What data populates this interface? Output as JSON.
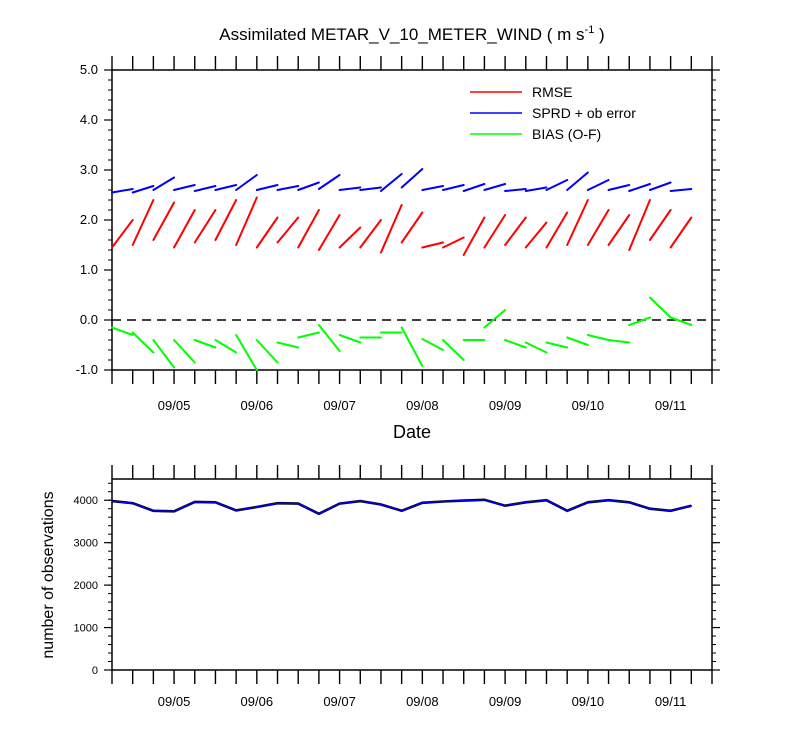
{
  "chart_data": [
    {
      "type": "line",
      "title": "Assimilated METAR_V_10_METER_WIND",
      "title_units": {
        "base": "m s",
        "exponent": "-1"
      },
      "xlabel": "Date",
      "ylabel": "",
      "ylim": [
        -1.0,
        5.0
      ],
      "xlim": [
        4.25,
        11.5
      ],
      "yticks": [
        -1.0,
        0.0,
        1.0,
        2.0,
        3.0,
        4.0,
        5.0
      ],
      "ytick_labels": [
        "-1.0",
        "0.0",
        "1.0",
        "2.0",
        "3.0",
        "4.0",
        "5.0"
      ],
      "xtick_values": [
        5,
        6,
        7,
        8,
        9,
        10,
        11
      ],
      "xtick_labels": [
        "09/05",
        "09/06",
        "09/07",
        "09/08",
        "09/09",
        "09/10",
        "09/11"
      ],
      "legend_position": "top-right",
      "zero_line": {
        "style": "dashed",
        "value": 0.0
      },
      "colors": {
        "rmse": "#ff0000",
        "spread": "#0000ff",
        "bias": "#00ff00"
      },
      "series": [
        {
          "name": "RMSE",
          "color": "#ff0000",
          "segments": [
            [
              [
                4.25,
                1.45
              ],
              [
                4.5,
                2.0
              ]
            ],
            [
              [
                4.5,
                1.5
              ],
              [
                4.75,
                2.4
              ]
            ],
            [
              [
                4.75,
                1.6
              ],
              [
                5.0,
                2.35
              ]
            ],
            [
              [
                5.0,
                1.45
              ],
              [
                5.25,
                2.2
              ]
            ],
            [
              [
                5.25,
                1.55
              ],
              [
                5.5,
                2.2
              ]
            ],
            [
              [
                5.5,
                1.6
              ],
              [
                5.75,
                2.4
              ]
            ],
            [
              [
                5.75,
                1.5
              ],
              [
                6.0,
                2.45
              ]
            ],
            [
              [
                6.0,
                1.45
              ],
              [
                6.25,
                2.05
              ]
            ],
            [
              [
                6.25,
                1.55
              ],
              [
                6.5,
                2.05
              ]
            ],
            [
              [
                6.5,
                1.45
              ],
              [
                6.75,
                2.2
              ]
            ],
            [
              [
                6.75,
                1.4
              ],
              [
                7.0,
                2.1
              ]
            ],
            [
              [
                7.0,
                1.45
              ],
              [
                7.25,
                1.85
              ]
            ],
            [
              [
                7.25,
                1.45
              ],
              [
                7.5,
                2.0
              ]
            ],
            [
              [
                7.5,
                1.35
              ],
              [
                7.75,
                2.3
              ]
            ],
            [
              [
                7.75,
                1.55
              ],
              [
                8.0,
                2.15
              ]
            ],
            [
              [
                8.0,
                1.45
              ],
              [
                8.25,
                1.55
              ]
            ],
            [
              [
                8.25,
                1.45
              ],
              [
                8.5,
                1.65
              ]
            ],
            [
              [
                8.5,
                1.3
              ],
              [
                8.75,
                2.05
              ]
            ],
            [
              [
                8.75,
                1.45
              ],
              [
                9.0,
                2.1
              ]
            ],
            [
              [
                9.0,
                1.5
              ],
              [
                9.25,
                2.05
              ]
            ],
            [
              [
                9.25,
                1.45
              ],
              [
                9.5,
                1.95
              ]
            ],
            [
              [
                9.5,
                1.45
              ],
              [
                9.75,
                2.15
              ]
            ],
            [
              [
                9.75,
                1.5
              ],
              [
                10.0,
                2.4
              ]
            ],
            [
              [
                10.0,
                1.5
              ],
              [
                10.25,
                2.2
              ]
            ],
            [
              [
                10.25,
                1.5
              ],
              [
                10.5,
                2.1
              ]
            ],
            [
              [
                10.5,
                1.4
              ],
              [
                10.75,
                2.4
              ]
            ],
            [
              [
                10.75,
                1.6
              ],
              [
                11.0,
                2.2
              ]
            ],
            [
              [
                11.0,
                1.45
              ],
              [
                11.25,
                2.05
              ]
            ]
          ]
        },
        {
          "name": "SPRD + ob error",
          "color": "#0000ff",
          "segments": [
            [
              [
                4.25,
                2.55
              ],
              [
                4.5,
                2.62
              ]
            ],
            [
              [
                4.5,
                2.55
              ],
              [
                4.75,
                2.68
              ]
            ],
            [
              [
                4.75,
                2.6
              ],
              [
                5.0,
                2.85
              ]
            ],
            [
              [
                5.0,
                2.6
              ],
              [
                5.25,
                2.7
              ]
            ],
            [
              [
                5.25,
                2.58
              ],
              [
                5.5,
                2.68
              ]
            ],
            [
              [
                5.5,
                2.6
              ],
              [
                5.75,
                2.7
              ]
            ],
            [
              [
                5.75,
                2.6
              ],
              [
                6.0,
                2.9
              ]
            ],
            [
              [
                6.0,
                2.6
              ],
              [
                6.25,
                2.7
              ]
            ],
            [
              [
                6.25,
                2.6
              ],
              [
                6.5,
                2.68
              ]
            ],
            [
              [
                6.5,
                2.6
              ],
              [
                6.75,
                2.75
              ]
            ],
            [
              [
                6.75,
                2.62
              ],
              [
                7.0,
                2.9
              ]
            ],
            [
              [
                7.0,
                2.6
              ],
              [
                7.25,
                2.65
              ]
            ],
            [
              [
                7.25,
                2.6
              ],
              [
                7.5,
                2.65
              ]
            ],
            [
              [
                7.5,
                2.58
              ],
              [
                7.75,
                2.92
              ]
            ],
            [
              [
                7.75,
                2.65
              ],
              [
                8.0,
                3.02
              ]
            ],
            [
              [
                8.0,
                2.6
              ],
              [
                8.25,
                2.68
              ]
            ],
            [
              [
                8.25,
                2.6
              ],
              [
                8.5,
                2.7
              ]
            ],
            [
              [
                8.5,
                2.58
              ],
              [
                8.75,
                2.72
              ]
            ],
            [
              [
                8.75,
                2.6
              ],
              [
                9.0,
                2.72
              ]
            ],
            [
              [
                9.0,
                2.58
              ],
              [
                9.25,
                2.62
              ]
            ],
            [
              [
                9.25,
                2.58
              ],
              [
                9.5,
                2.65
              ]
            ],
            [
              [
                9.5,
                2.6
              ],
              [
                9.75,
                2.8
              ]
            ],
            [
              [
                9.75,
                2.6
              ],
              [
                10.0,
                2.95
              ]
            ],
            [
              [
                10.0,
                2.6
              ],
              [
                10.25,
                2.8
              ]
            ],
            [
              [
                10.25,
                2.6
              ],
              [
                10.5,
                2.7
              ]
            ],
            [
              [
                10.5,
                2.58
              ],
              [
                10.75,
                2.72
              ]
            ],
            [
              [
                10.75,
                2.6
              ],
              [
                11.0,
                2.75
              ]
            ],
            [
              [
                11.0,
                2.58
              ],
              [
                11.25,
                2.62
              ]
            ]
          ]
        },
        {
          "name": "BIAS (O-F)",
          "color": "#00ff00",
          "segments": [
            [
              [
                4.25,
                -0.15
              ],
              [
                4.5,
                -0.3
              ]
            ],
            [
              [
                4.5,
                -0.25
              ],
              [
                4.75,
                -0.65
              ]
            ],
            [
              [
                4.75,
                -0.4
              ],
              [
                5.0,
                -0.95
              ]
            ],
            [
              [
                5.0,
                -0.4
              ],
              [
                5.25,
                -0.85
              ]
            ],
            [
              [
                5.25,
                -0.4
              ],
              [
                5.5,
                -0.55
              ]
            ],
            [
              [
                5.5,
                -0.4
              ],
              [
                5.75,
                -0.65
              ]
            ],
            [
              [
                5.75,
                -0.3
              ],
              [
                6.0,
                -1.0
              ]
            ],
            [
              [
                6.0,
                -0.4
              ],
              [
                6.25,
                -0.85
              ]
            ],
            [
              [
                6.25,
                -0.45
              ],
              [
                6.5,
                -0.55
              ]
            ],
            [
              [
                6.5,
                -0.35
              ],
              [
                6.75,
                -0.25
              ]
            ],
            [
              [
                6.75,
                -0.1
              ],
              [
                7.0,
                -0.62
              ]
            ],
            [
              [
                7.0,
                -0.3
              ],
              [
                7.25,
                -0.45
              ]
            ],
            [
              [
                7.25,
                -0.35
              ],
              [
                7.5,
                -0.35
              ]
            ],
            [
              [
                7.5,
                -0.25
              ],
              [
                7.75,
                -0.25
              ]
            ],
            [
              [
                7.75,
                -0.15
              ],
              [
                8.0,
                -0.92
              ]
            ],
            [
              [
                8.0,
                -0.38
              ],
              [
                8.25,
                -0.6
              ]
            ],
            [
              [
                8.25,
                -0.4
              ],
              [
                8.5,
                -0.8
              ]
            ],
            [
              [
                8.5,
                -0.4
              ],
              [
                8.75,
                -0.4
              ]
            ],
            [
              [
                8.75,
                -0.15
              ],
              [
                9.0,
                0.2
              ]
            ],
            [
              [
                9.0,
                -0.4
              ],
              [
                9.25,
                -0.55
              ]
            ],
            [
              [
                9.25,
                -0.45
              ],
              [
                9.5,
                -0.65
              ]
            ],
            [
              [
                9.5,
                -0.45
              ],
              [
                9.75,
                -0.55
              ]
            ],
            [
              [
                9.75,
                -0.35
              ],
              [
                10.0,
                -0.5
              ]
            ],
            [
              [
                10.0,
                -0.3
              ],
              [
                10.25,
                -0.4
              ]
            ],
            [
              [
                10.25,
                -0.4
              ],
              [
                10.5,
                -0.45
              ]
            ],
            [
              [
                10.5,
                -0.1
              ],
              [
                10.75,
                0.05
              ]
            ],
            [
              [
                10.75,
                0.45
              ],
              [
                11.0,
                0.05
              ]
            ],
            [
              [
                11.0,
                0.05
              ],
              [
                11.25,
                -0.1
              ]
            ]
          ]
        }
      ]
    },
    {
      "type": "line",
      "title": "",
      "xlabel": "",
      "ylabel": "number of observations",
      "ylim": [
        0,
        4500
      ],
      "xlim": [
        4.25,
        11.5
      ],
      "yticks": [
        0,
        1000,
        2000,
        3000,
        4000
      ],
      "ytick_labels": [
        "0",
        "1000",
        "2000",
        "3000",
        "4000"
      ],
      "xtick_values": [
        5,
        6,
        7,
        8,
        9,
        10,
        11
      ],
      "xtick_labels": [
        "09/05",
        "09/06",
        "09/07",
        "09/08",
        "09/09",
        "09/10",
        "09/11"
      ],
      "colors": {
        "possible": "#000000",
        "used": "#0000ff"
      },
      "x": [
        4.25,
        4.5,
        4.75,
        5.0,
        5.25,
        5.5,
        5.75,
        6.0,
        6.25,
        6.5,
        6.75,
        7.0,
        7.25,
        7.5,
        7.75,
        8.0,
        8.25,
        8.5,
        8.75,
        9.0,
        9.25,
        9.5,
        9.75,
        10.0,
        10.25,
        10.5,
        10.75,
        11.0,
        11.25
      ],
      "values": [
        3980,
        3930,
        3750,
        3740,
        3960,
        3950,
        3760,
        3840,
        3930,
        3920,
        3680,
        3920,
        3980,
        3900,
        3750,
        3940,
        3970,
        3990,
        4010,
        3870,
        3950,
        4000,
        3750,
        3950,
        4000,
        3950,
        3800,
        3750,
        3870
      ]
    }
  ]
}
